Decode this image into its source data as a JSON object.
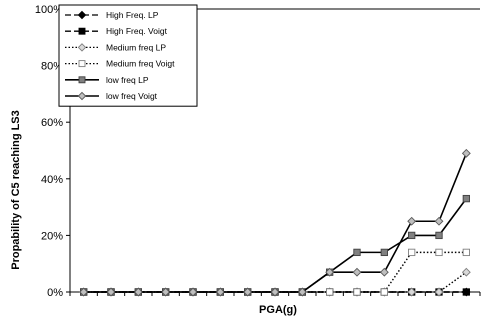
{
  "chart_data": {
    "type": "line",
    "title": "",
    "xlabel": "PGA(g)",
    "ylabel": "Propability of C5  reaching  LS3",
    "x": [
      1,
      2,
      3,
      4,
      5,
      6,
      7,
      8,
      9,
      10,
      11,
      12,
      13,
      14,
      15
    ],
    "xlim": [
      0.5,
      15.5
    ],
    "ylim": [
      0,
      1
    ],
    "yticks": [
      0,
      0.2,
      0.4,
      0.6,
      0.8,
      1.0
    ],
    "ytick_labels": [
      "0%",
      "20%",
      "40%",
      "60%",
      "80%",
      "100%"
    ],
    "grid": false,
    "legend_position": "top-left",
    "series": [
      {
        "name": "High Freq. LP",
        "values": [
          0,
          0,
          0,
          0,
          0,
          0,
          0,
          0,
          0,
          0,
          0,
          0,
          0,
          0,
          0
        ],
        "line": "dashed",
        "marker": "diamond",
        "marker_fill": "#000000",
        "marker_stroke": "#000000"
      },
      {
        "name": "High Freq. Voigt",
        "values": [
          0,
          0,
          0,
          0,
          0,
          0,
          0,
          0,
          0,
          0,
          0,
          0,
          0,
          0,
          0
        ],
        "line": "dashed",
        "marker": "square",
        "marker_fill": "#000000",
        "marker_stroke": "#000000"
      },
      {
        "name": "Medium freq LP",
        "values": [
          0,
          0,
          0,
          0,
          0,
          0,
          0,
          0,
          0,
          0,
          0,
          0,
          0,
          0,
          0.07
        ],
        "line": "dotted",
        "marker": "diamond",
        "marker_fill": "#d9d9d9",
        "marker_stroke": "#7f7f7f"
      },
      {
        "name": "Medium freq Voigt",
        "values": [
          0,
          0,
          0,
          0,
          0,
          0,
          0,
          0,
          0,
          0,
          0,
          0,
          0.14,
          0.14,
          0.14
        ],
        "line": "dotted",
        "marker": "square",
        "marker_fill": "#ffffff",
        "marker_stroke": "#7f7f7f"
      },
      {
        "name": "low freq LP",
        "values": [
          0,
          0,
          0,
          0,
          0,
          0,
          0,
          0,
          0,
          0.07,
          0.14,
          0.14,
          0.2,
          0.2,
          0.33
        ],
        "line": "solid",
        "marker": "square",
        "marker_fill": "#808080",
        "marker_stroke": "#404040"
      },
      {
        "name": "low freq Voigt",
        "values": [
          0,
          0,
          0,
          0,
          0,
          0,
          0,
          0,
          0,
          0.07,
          0.07,
          0.07,
          0.25,
          0.25,
          0.49
        ],
        "line": "solid",
        "marker": "diamond",
        "marker_fill": "#bfbfbf",
        "marker_stroke": "#595959"
      }
    ]
  }
}
